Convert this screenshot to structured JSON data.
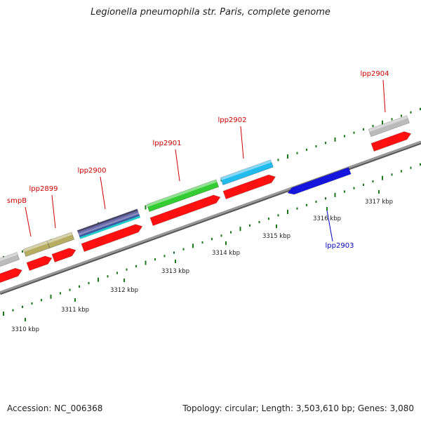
{
  "title": "Legionella pneumophila str. Paris, complete genome",
  "footer": {
    "accession": "Accession: NC_006368",
    "topology": "Topology: circular; Length: 3,503,610 bp; Genes: 3,080"
  },
  "scale": {
    "unit": "kbp",
    "ticks": [
      3310,
      3311,
      3312,
      3313,
      3314,
      3315,
      3316,
      3317
    ]
  },
  "colors": {
    "backbone": "#888888",
    "tick": "#1a7a1a",
    "cds": "#ff1010",
    "label_forward": "#cc0000",
    "label_reverse": "#0000bb"
  },
  "genes": [
    {
      "name": "",
      "color": "#bbbbbb",
      "strand": "forward"
    },
    {
      "name": "smpB",
      "color": "#b6ad63",
      "strand": "forward"
    },
    {
      "name": "lpp2899",
      "color": "#b6ad63",
      "strand": "forward"
    },
    {
      "name": "lpp2900",
      "color": "#6a6aa8",
      "strand": "forward"
    },
    {
      "name": "lpp2901",
      "color": "#33cc33",
      "strand": "forward"
    },
    {
      "name": "lpp2902",
      "color": "#22bbee",
      "strand": "forward"
    },
    {
      "name": "lpp2903",
      "color": "#1515dd",
      "strand": "reverse"
    },
    {
      "name": "lpp2904",
      "color": "#bbbbbb",
      "strand": "forward"
    }
  ]
}
